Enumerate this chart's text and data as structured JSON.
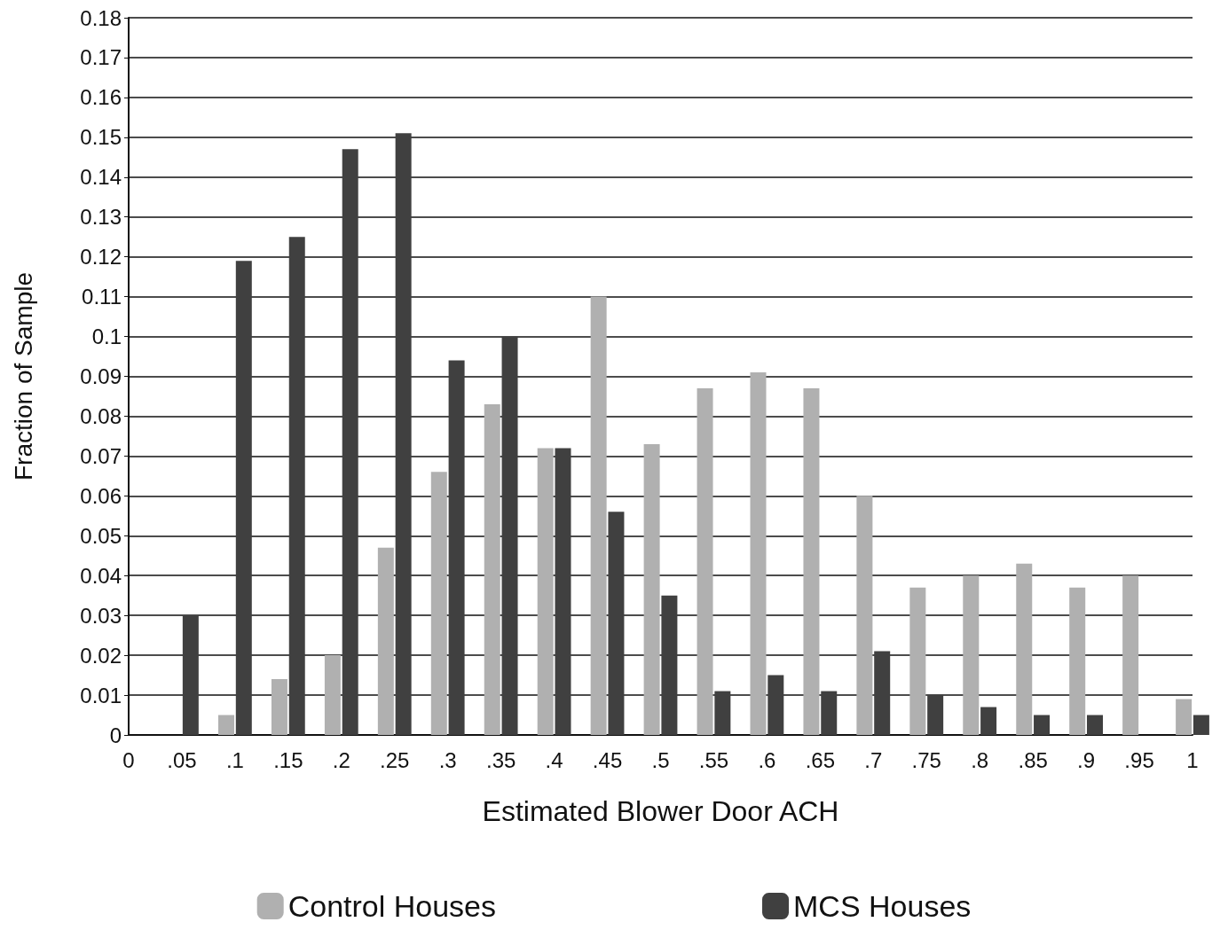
{
  "chart_data": {
    "type": "bar",
    "xlabel": "Estimated Blower Door ACH",
    "ylabel": "Fraction of Sample",
    "categories": [
      "0",
      ".05",
      ".1",
      ".15",
      ".2",
      ".25",
      ".3",
      ".35",
      ".4",
      ".45",
      ".5",
      ".55",
      ".6",
      ".65",
      ".7",
      ".75",
      ".8",
      ".85",
      ".9",
      ".95",
      "1"
    ],
    "series": [
      {
        "name": "Control Houses",
        "color": "#b0b0b0",
        "values": [
          null,
          0,
          0.005,
          0.014,
          0.02,
          0.047,
          0.066,
          0.083,
          0.072,
          0.11,
          0.073,
          0.087,
          0.091,
          0.087,
          0.06,
          0.037,
          0.04,
          0.043,
          0.037,
          0.04,
          0.009
        ]
      },
      {
        "name": "MCS Houses",
        "color": "#404040",
        "values": [
          null,
          0.03,
          0.119,
          0.125,
          0.147,
          0.151,
          0.094,
          0.1,
          0.072,
          0.056,
          0.035,
          0.011,
          0.015,
          0.011,
          0.021,
          0.01,
          0.007,
          0.005,
          0.005,
          0,
          0.005
        ]
      }
    ],
    "ylim": [
      0,
      0.18
    ],
    "yticks": [
      0,
      0.01,
      0.02,
      0.03,
      0.04,
      0.05,
      0.06,
      0.07,
      0.08,
      0.09,
      0.1,
      0.11,
      0.12,
      0.13,
      0.14,
      0.15,
      0.16,
      0.17,
      0.18
    ],
    "grid": "y",
    "legend": "bottom"
  }
}
